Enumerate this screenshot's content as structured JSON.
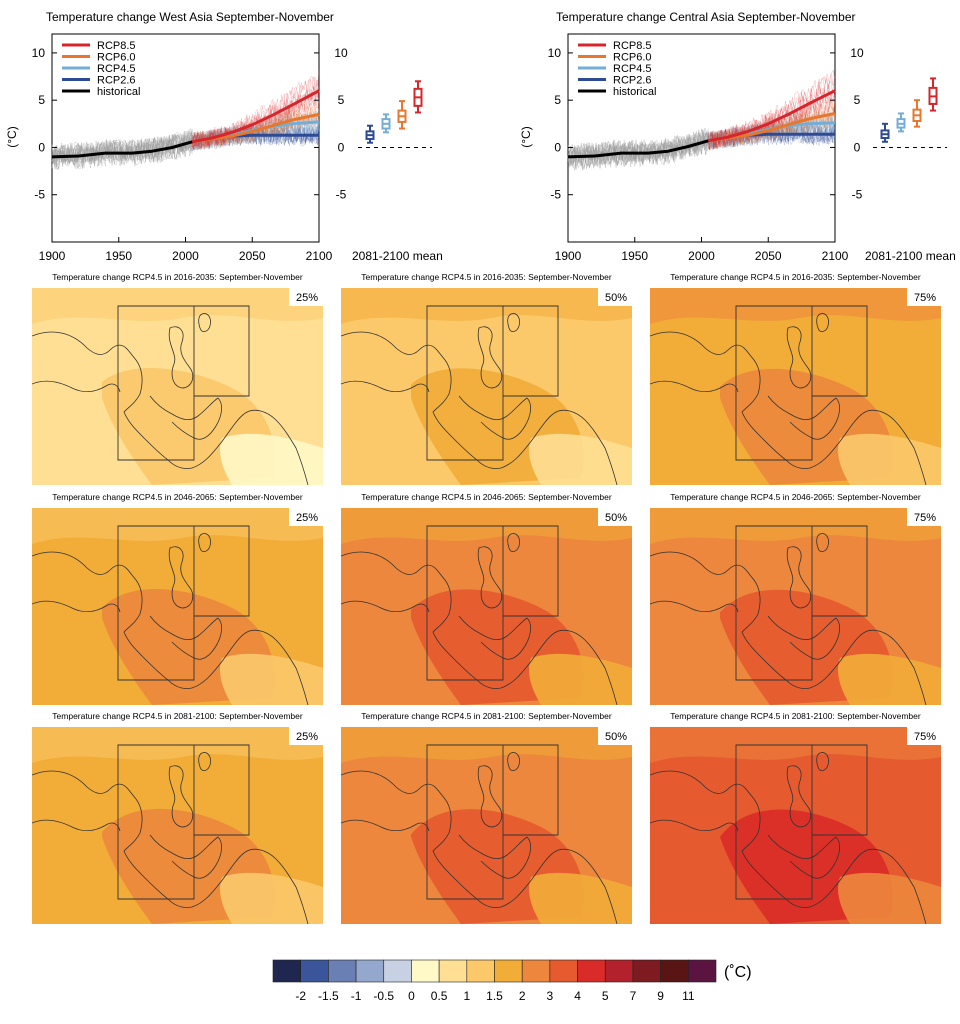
{
  "colors": {
    "rcp85": "#d7262b",
    "rcp60": "#e8772e",
    "rcp45": "#74add8",
    "rcp26": "#2e4a94",
    "historical": "#000000",
    "spread": "#9a9a9a"
  },
  "chart_data": [
    {
      "type": "line",
      "title": "Temperature change West Asia September-November",
      "ylabel": "(°C)",
      "xlim": [
        1900,
        2100
      ],
      "ylim": [
        -10,
        12
      ],
      "xticks": [
        1900,
        1950,
        2000,
        2050,
        2100
      ],
      "yticks": [
        -5,
        0,
        5,
        10
      ],
      "right_yticks": [
        -5,
        0,
        5,
        10
      ],
      "legend_position": "top-left",
      "series": [
        {
          "name": "RCP8.5",
          "x": [
            2005,
            2020,
            2035,
            2050,
            2065,
            2080,
            2100
          ],
          "values": [
            0.6,
            1.0,
            1.6,
            2.4,
            3.4,
            4.5,
            6.0
          ]
        },
        {
          "name": "RCP6.0",
          "x": [
            2005,
            2020,
            2035,
            2050,
            2065,
            2080,
            2100
          ],
          "values": [
            0.6,
            0.9,
            1.2,
            1.7,
            2.3,
            2.9,
            3.5
          ]
        },
        {
          "name": "RCP4.5",
          "x": [
            2005,
            2020,
            2035,
            2050,
            2065,
            2080,
            2100
          ],
          "values": [
            0.6,
            0.9,
            1.3,
            1.8,
            2.2,
            2.5,
            2.7
          ]
        },
        {
          "name": "RCP2.6",
          "x": [
            2005,
            2020,
            2035,
            2050,
            2065,
            2080,
            2100
          ],
          "values": [
            0.6,
            0.9,
            1.2,
            1.3,
            1.3,
            1.3,
            1.3
          ]
        },
        {
          "name": "historical",
          "x": [
            1900,
            1920,
            1940,
            1960,
            1975,
            1990,
            2005
          ],
          "values": [
            -1.0,
            -0.9,
            -0.6,
            -0.6,
            -0.4,
            0.0,
            0.6
          ]
        }
      ],
      "boxes_label": "2081-2100 mean",
      "boxes": [
        {
          "name": "RCP2.6",
          "whisker_low": 0.5,
          "q1": 0.9,
          "median": 1.3,
          "q3": 1.7,
          "whisker_high": 2.3
        },
        {
          "name": "RCP4.5",
          "whisker_low": 1.6,
          "q1": 2.0,
          "median": 2.5,
          "q3": 3.0,
          "whisker_high": 3.5
        },
        {
          "name": "RCP6.0",
          "whisker_low": 2.0,
          "q1": 2.7,
          "median": 3.3,
          "q3": 3.9,
          "whisker_high": 4.9
        },
        {
          "name": "RCP8.5",
          "whisker_low": 3.7,
          "q1": 4.4,
          "median": 5.3,
          "q3": 6.2,
          "whisker_high": 7.0
        }
      ]
    },
    {
      "type": "line",
      "title": "Temperature change Central Asia September-November",
      "ylabel": "(°C)",
      "xlim": [
        1900,
        2100
      ],
      "ylim": [
        -10,
        12
      ],
      "xticks": [
        1900,
        1950,
        2000,
        2050,
        2100
      ],
      "yticks": [
        -5,
        0,
        5,
        10
      ],
      "right_yticks": [
        -5,
        0,
        5,
        10
      ],
      "legend_position": "top-left",
      "series": [
        {
          "name": "RCP8.5",
          "x": [
            2005,
            2020,
            2035,
            2050,
            2065,
            2080,
            2100
          ],
          "values": [
            0.7,
            1.1,
            1.7,
            2.5,
            3.5,
            4.6,
            6.0
          ]
        },
        {
          "name": "RCP6.0",
          "x": [
            2005,
            2020,
            2035,
            2050,
            2065,
            2080,
            2100
          ],
          "values": [
            0.7,
            1.0,
            1.3,
            1.8,
            2.4,
            3.0,
            3.6
          ]
        },
        {
          "name": "RCP4.5",
          "x": [
            2005,
            2020,
            2035,
            2050,
            2065,
            2080,
            2100
          ],
          "values": [
            0.7,
            1.0,
            1.4,
            1.9,
            2.3,
            2.5,
            2.6
          ]
        },
        {
          "name": "RCP2.6",
          "x": [
            2005,
            2020,
            2035,
            2050,
            2065,
            2080,
            2100
          ],
          "values": [
            0.7,
            1.0,
            1.3,
            1.4,
            1.4,
            1.4,
            1.4
          ]
        },
        {
          "name": "historical",
          "x": [
            1900,
            1920,
            1940,
            1960,
            1975,
            1990,
            2005
          ],
          "values": [
            -1.0,
            -0.9,
            -0.6,
            -0.6,
            -0.4,
            0.1,
            0.7
          ]
        }
      ],
      "boxes_label": "2081-2100 mean",
      "boxes": [
        {
          "name": "RCP2.6",
          "whisker_low": 0.6,
          "q1": 1.0,
          "median": 1.4,
          "q3": 1.8,
          "whisker_high": 2.5
        },
        {
          "name": "RCP4.5",
          "whisker_low": 1.7,
          "q1": 2.1,
          "median": 2.5,
          "q3": 3.0,
          "whisker_high": 3.6
        },
        {
          "name": "RCP6.0",
          "whisker_low": 2.2,
          "q1": 2.8,
          "median": 3.4,
          "q3": 4.0,
          "whisker_high": 5.0
        },
        {
          "name": "RCP8.5",
          "whisker_low": 3.9,
          "q1": 4.6,
          "median": 5.4,
          "q3": 6.3,
          "whisker_high": 7.3
        }
      ]
    },
    {
      "type": "heatmap",
      "title": "Temperature change RCP4.5 in 2016-2035: September-November",
      "percentile_labels": [
        "25%",
        "50%",
        "75%"
      ],
      "dominant_class_index": [
        6,
        7,
        8
      ]
    },
    {
      "type": "heatmap",
      "title": "Temperature change RCP4.5 in 2046-2065: September-November",
      "percentile_labels": [
        "25%",
        "50%",
        "75%"
      ],
      "dominant_class_index": [
        8,
        9,
        9
      ]
    },
    {
      "type": "heatmap",
      "title": "Temperature change RCP4.5 in 2081-2100: September-November",
      "percentile_labels": [
        "25%",
        "50%",
        "75%"
      ],
      "dominant_class_index": [
        8,
        9,
        10
      ]
    }
  ],
  "colorbar": {
    "unit": "(˚C)",
    "colors": [
      "#1f2751",
      "#3a559a",
      "#6a7fb4",
      "#94a7cc",
      "#c7d1e3",
      "#fff8c7",
      "#fedf94",
      "#fbc86a",
      "#f2ac38",
      "#ec873d",
      "#e65a2f",
      "#d92b27",
      "#b2212c",
      "#7e1b21",
      "#591414",
      "#5b1440"
    ],
    "tick_labels": [
      "-2",
      "-1.5",
      "-1",
      "-0.5",
      "0",
      "0.5",
      "1",
      "1.5",
      "2",
      "3",
      "4",
      "5",
      "7",
      "9",
      "11"
    ]
  }
}
